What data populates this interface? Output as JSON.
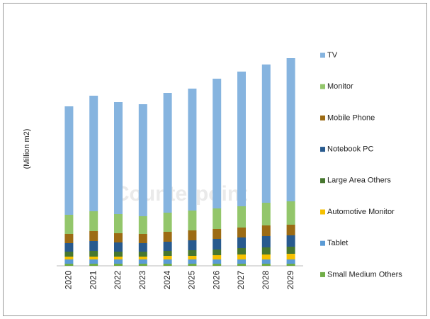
{
  "chart_data": {
    "type": "stacked-bar",
    "y_label": "(Million m2)",
    "watermark": "Counterpoint",
    "categories": [
      "2020",
      "2021",
      "2022",
      "2023",
      "2024",
      "2025",
      "2026",
      "2027",
      "2028",
      "2029"
    ],
    "series": [
      {
        "name": "Small Medium Others",
        "color": "#70ad47",
        "values": [
          3,
          3,
          3,
          3,
          3,
          3,
          3,
          3,
          3,
          3
        ]
      },
      {
        "name": "Tablet",
        "color": "#5b9bd5",
        "values": [
          6,
          6,
          6,
          6,
          6,
          6,
          6,
          6,
          6,
          6
        ]
      },
      {
        "name": "Automotive Monitor",
        "color": "#f5c000",
        "values": [
          4,
          4,
          4,
          4,
          5,
          5,
          6,
          7,
          7,
          8
        ]
      },
      {
        "name": "Large Area Others",
        "color": "#47772f",
        "values": [
          7,
          8,
          7,
          7,
          7,
          8,
          8,
          9,
          10,
          10
        ]
      },
      {
        "name": "Notebook PC",
        "color": "#285a8e",
        "values": [
          12,
          14,
          13,
          12,
          13,
          14,
          15,
          15,
          16,
          16
        ]
      },
      {
        "name": "Mobile Phone",
        "color": "#9c6b14",
        "values": [
          13,
          14,
          13,
          13,
          14,
          14,
          14,
          14,
          15,
          15
        ]
      },
      {
        "name": "Monitor",
        "color": "#93c66b",
        "values": [
          27,
          28,
          27,
          25,
          27,
          28,
          29,
          30,
          32,
          33
        ]
      },
      {
        "name": "TV",
        "color": "#86b4df",
        "values": [
          153,
          163,
          158,
          158,
          169,
          172,
          183,
          190,
          195,
          202
        ]
      }
    ],
    "ylim": [
      0,
      300
    ]
  }
}
